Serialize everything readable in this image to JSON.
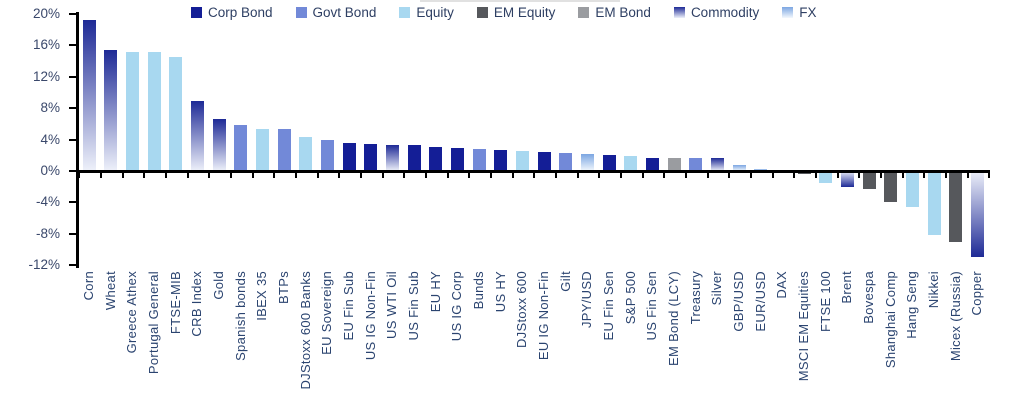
{
  "chart_data": {
    "type": "bar",
    "title": "",
    "xlabel": "",
    "ylabel": "",
    "ylim": [
      -12,
      20
    ],
    "grid": false,
    "legend_position": "top",
    "y_ticks": [
      "20%",
      "16%",
      "12%",
      "8%",
      "4%",
      "0%",
      "-4%",
      "-8%",
      "-12%"
    ],
    "legend": [
      "Corp Bond",
      "Govt Bond",
      "Equity",
      "EM Equity",
      "EM Bond",
      "Commodity",
      "FX"
    ],
    "category_colors": {
      "Corp Bond": {
        "solid": "#141e96"
      },
      "Govt Bond": {
        "solid": "#7289d8"
      },
      "Equity": {
        "solid": "#a8d8f0"
      },
      "EM Equity": {
        "solid": "#56585c"
      },
      "EM Bond": {
        "solid": "#9a9ca0"
      },
      "Commodity": {
        "gradient": [
          "#1e2a96",
          "#eef1fa"
        ]
      },
      "FX": {
        "gradient": [
          "#7ca6e2",
          "#f3f8fd"
        ]
      }
    },
    "points": [
      {
        "label": "Corn",
        "value": 19.2,
        "category": "Commodity"
      },
      {
        "label": "Wheat",
        "value": 15.4,
        "category": "Commodity"
      },
      {
        "label": "Greece Athex",
        "value": 15.1,
        "category": "Equity"
      },
      {
        "label": "Portugal General",
        "value": 15.1,
        "category": "Equity"
      },
      {
        "label": "FTSE-MIB",
        "value": 14.5,
        "category": "Equity"
      },
      {
        "label": "CRB Index",
        "value": 8.9,
        "category": "Commodity"
      },
      {
        "label": "Gold",
        "value": 6.6,
        "category": "Commodity"
      },
      {
        "label": "Spanish bonds",
        "value": 5.9,
        "category": "Govt Bond"
      },
      {
        "label": "IBEX 35",
        "value": 5.4,
        "category": "Equity"
      },
      {
        "label": "BTPs",
        "value": 5.4,
        "category": "Govt Bond"
      },
      {
        "label": "DJStoxx 600 Banks",
        "value": 4.3,
        "category": "Equity"
      },
      {
        "label": "EU Sovereign",
        "value": 3.9,
        "category": "Govt Bond"
      },
      {
        "label": "EU Fin Sub",
        "value": 3.6,
        "category": "Corp Bond"
      },
      {
        "label": "US IG Non-Fin",
        "value": 3.4,
        "category": "Corp Bond"
      },
      {
        "label": "US WTI Oil",
        "value": 3.3,
        "category": "Commodity"
      },
      {
        "label": "US Fin Sub",
        "value": 3.3,
        "category": "Corp Bond"
      },
      {
        "label": "EU HY",
        "value": 3.1,
        "category": "Corp Bond"
      },
      {
        "label": "US IG Corp",
        "value": 2.9,
        "category": "Corp Bond"
      },
      {
        "label": "Bunds",
        "value": 2.8,
        "category": "Govt Bond"
      },
      {
        "label": "US HY",
        "value": 2.7,
        "category": "Corp Bond"
      },
      {
        "label": "DJStoxx 600",
        "value": 2.5,
        "category": "Equity"
      },
      {
        "label": "EU IG Non-Fin",
        "value": 2.4,
        "category": "Corp Bond"
      },
      {
        "label": "Gilt",
        "value": 2.3,
        "category": "Govt Bond"
      },
      {
        "label": "JPY/USD",
        "value": 2.2,
        "category": "FX"
      },
      {
        "label": "EU Fin Sen",
        "value": 2.1,
        "category": "Corp Bond"
      },
      {
        "label": "S&P 500",
        "value": 1.9,
        "category": "Equity"
      },
      {
        "label": "US Fin Sen",
        "value": 1.7,
        "category": "Corp Bond"
      },
      {
        "label": "EM Bond (LCY)",
        "value": 1.7,
        "category": "EM Bond"
      },
      {
        "label": "Treasury",
        "value": 1.6,
        "category": "Govt Bond"
      },
      {
        "label": "Silver",
        "value": 1.6,
        "category": "Commodity"
      },
      {
        "label": "GBP/USD",
        "value": 0.8,
        "category": "FX"
      },
      {
        "label": "EUR/USD",
        "value": 0.3,
        "category": "FX"
      },
      {
        "label": "DAX",
        "value": -0.2,
        "category": "Equity"
      },
      {
        "label": "MSCI EM Equities",
        "value": -0.4,
        "category": "EM Equity"
      },
      {
        "label": "FTSE 100",
        "value": -1.5,
        "category": "Equity"
      },
      {
        "label": "Brent",
        "value": -2.1,
        "category": "Commodity"
      },
      {
        "label": "Bovespa",
        "value": -2.3,
        "category": "EM Equity"
      },
      {
        "label": "Shanghai Comp",
        "value": -4.0,
        "category": "EM Equity"
      },
      {
        "label": "Hang Seng",
        "value": -4.6,
        "category": "Equity"
      },
      {
        "label": "Nikkei",
        "value": -8.2,
        "category": "Equity"
      },
      {
        "label": "Micex (Russia)",
        "value": -9.0,
        "category": "EM Equity"
      },
      {
        "label": "Copper",
        "value": -10.9,
        "category": "Commodity"
      }
    ]
  }
}
